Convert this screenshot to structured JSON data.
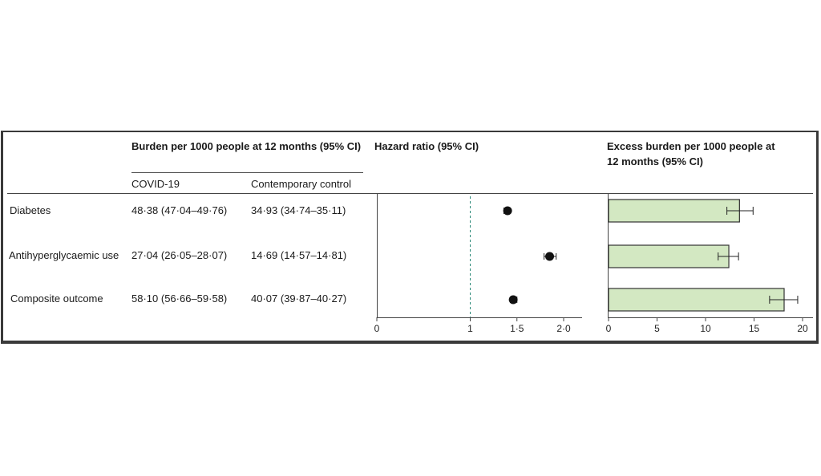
{
  "table": {
    "burden_header": "Burden per 1000 people at  12 months (95% CI)",
    "col_covid": "COVID-19",
    "col_control": "Contemporary control",
    "rows": [
      {
        "outcome": "Diabetes",
        "covid": "48·38 (47·04–49·76)",
        "control": "34·93 (34·74–35·11)"
      },
      {
        "outcome": "Antihyperglycaemic use",
        "covid": "27·04 (26·05–28·07)",
        "control": "14·69 (14·57–14·81)"
      },
      {
        "outcome": "Composite outcome",
        "covid": "58·10 (56·66–59·58)",
        "control": "40·07 (39·87–40·27)"
      }
    ]
  },
  "chart_data": [
    {
      "type": "scatter",
      "title": "Hazard ratio (95% CI)",
      "categories": [
        "Diabetes",
        "Antihyperglycaemic use",
        "Composite outcome"
      ],
      "values": [
        1.4,
        1.85,
        1.46
      ],
      "ci_low": [
        1.36,
        1.79,
        1.43
      ],
      "ci_high": [
        1.43,
        1.92,
        1.5
      ],
      "reference_line": 1,
      "xlim": [
        0,
        2.1
      ],
      "ticks": [
        0,
        1,
        1.5,
        2.0
      ],
      "tick_labels": [
        "0",
        "1",
        "1·5",
        "2·0"
      ],
      "marker_color": "#111111",
      "reference_line_color": "#2e8b7a"
    },
    {
      "type": "bar",
      "orientation": "horizontal",
      "title_line1": "Excess burden per 1000 people at",
      "title_line2": "12 months (95% CI)",
      "categories": [
        "Diabetes",
        "Antihyperglycaemic use",
        "Composite outcome"
      ],
      "values": [
        13.5,
        12.4,
        18.1
      ],
      "ci_low": [
        12.2,
        11.3,
        16.6
      ],
      "ci_high": [
        14.9,
        13.4,
        19.5
      ],
      "xlim": [
        0,
        21
      ],
      "ticks": [
        0,
        5,
        10,
        15,
        20
      ],
      "tick_labels": [
        "0",
        "5",
        "10",
        "15",
        "20"
      ],
      "bar_color": "#d3e8c2",
      "bar_edge_color": "#333333"
    }
  ]
}
